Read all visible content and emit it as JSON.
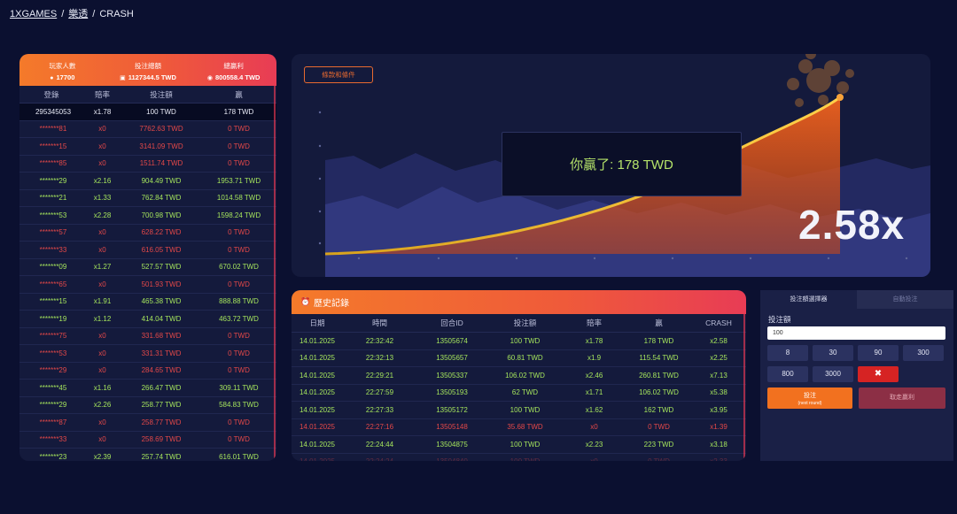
{
  "breadcrumb": {
    "home": "1XGAMES",
    "section": "樂透",
    "current": "CRASH",
    "separator": "/"
  },
  "stats": {
    "players_label": "玩家人數",
    "players_value": "17700",
    "total_bet_label": "投注總額",
    "total_bet_value": "1127344.5 TWD",
    "total_win_label": "總贏利",
    "total_win_value": "800558.4 TWD"
  },
  "bets_columns": [
    "登錄",
    "賠率",
    "投注額",
    "贏"
  ],
  "bets": [
    {
      "user": "295345053",
      "odds": "x1.78",
      "bet": "100 TWD",
      "win": "178 TWD",
      "state": "self"
    },
    {
      "user": "*******81",
      "odds": "x0",
      "bet": "7762.63 TWD",
      "win": "0 TWD",
      "state": "lose"
    },
    {
      "user": "*******15",
      "odds": "x0",
      "bet": "3141.09 TWD",
      "win": "0 TWD",
      "state": "lose"
    },
    {
      "user": "*******85",
      "odds": "x0",
      "bet": "1511.74 TWD",
      "win": "0 TWD",
      "state": "lose"
    },
    {
      "user": "*******29",
      "odds": "x2.16",
      "bet": "904.49 TWD",
      "win": "1953.71 TWD",
      "state": "win"
    },
    {
      "user": "*******21",
      "odds": "x1.33",
      "bet": "762.84 TWD",
      "win": "1014.58 TWD",
      "state": "win"
    },
    {
      "user": "*******53",
      "odds": "x2.28",
      "bet": "700.98 TWD",
      "win": "1598.24 TWD",
      "state": "win"
    },
    {
      "user": "*******57",
      "odds": "x0",
      "bet": "628.22 TWD",
      "win": "0 TWD",
      "state": "lose"
    },
    {
      "user": "*******33",
      "odds": "x0",
      "bet": "616.05 TWD",
      "win": "0 TWD",
      "state": "lose"
    },
    {
      "user": "*******09",
      "odds": "x1.27",
      "bet": "527.57 TWD",
      "win": "670.02 TWD",
      "state": "win"
    },
    {
      "user": "*******65",
      "odds": "x0",
      "bet": "501.93 TWD",
      "win": "0 TWD",
      "state": "lose"
    },
    {
      "user": "*******15",
      "odds": "x1.91",
      "bet": "465.38 TWD",
      "win": "888.88 TWD",
      "state": "win"
    },
    {
      "user": "*******19",
      "odds": "x1.12",
      "bet": "414.04 TWD",
      "win": "463.72 TWD",
      "state": "win"
    },
    {
      "user": "*******75",
      "odds": "x0",
      "bet": "331.68 TWD",
      "win": "0 TWD",
      "state": "lose"
    },
    {
      "user": "*******53",
      "odds": "x0",
      "bet": "331.31 TWD",
      "win": "0 TWD",
      "state": "lose"
    },
    {
      "user": "*******29",
      "odds": "x0",
      "bet": "284.65 TWD",
      "win": "0 TWD",
      "state": "lose"
    },
    {
      "user": "*******45",
      "odds": "x1.16",
      "bet": "266.47 TWD",
      "win": "309.11 TWD",
      "state": "win"
    },
    {
      "user": "*******29",
      "odds": "x2.26",
      "bet": "258.77 TWD",
      "win": "584.83 TWD",
      "state": "win"
    },
    {
      "user": "*******87",
      "odds": "x0",
      "bet": "258.77 TWD",
      "win": "0 TWD",
      "state": "lose"
    },
    {
      "user": "*******33",
      "odds": "x0",
      "bet": "258.69 TWD",
      "win": "0 TWD",
      "state": "lose"
    },
    {
      "user": "*******23",
      "odds": "x2.39",
      "bet": "257.74 TWD",
      "win": "616.01 TWD",
      "state": "win"
    }
  ],
  "game": {
    "terms_label": "條款和條件",
    "win_message": "你贏了: 178 TWD",
    "multiplier": "2.58x",
    "curve_color": "#f5c342",
    "fill_color": "#f0621e"
  },
  "history": {
    "title": "歷史記錄",
    "columns": [
      "日期",
      "時間",
      "回合ID",
      "投注額",
      "賠率",
      "贏",
      "CRASH"
    ],
    "rows": [
      {
        "date": "14.01.2025",
        "time": "22:32:42",
        "round": "13505674",
        "bet": "100 TWD",
        "odds": "x1.78",
        "win": "178 TWD",
        "crash": "x2.58",
        "state": "win"
      },
      {
        "date": "14.01.2025",
        "time": "22:32:13",
        "round": "13505657",
        "bet": "60.81 TWD",
        "odds": "x1.9",
        "win": "115.54 TWD",
        "crash": "x2.25",
        "state": "win"
      },
      {
        "date": "14.01.2025",
        "time": "22:29:21",
        "round": "13505337",
        "bet": "106.02 TWD",
        "odds": "x2.46",
        "win": "260.81 TWD",
        "crash": "x7.13",
        "state": "win"
      },
      {
        "date": "14.01.2025",
        "time": "22:27:59",
        "round": "13505193",
        "bet": "62 TWD",
        "odds": "x1.71",
        "win": "106.02 TWD",
        "crash": "x5.38",
        "state": "win"
      },
      {
        "date": "14.01.2025",
        "time": "22:27:33",
        "round": "13505172",
        "bet": "100 TWD",
        "odds": "x1.62",
        "win": "162 TWD",
        "crash": "x3.95",
        "state": "win"
      },
      {
        "date": "14.01.2025",
        "time": "22:27:16",
        "round": "13505148",
        "bet": "35.68 TWD",
        "odds": "x0",
        "win": "0 TWD",
        "crash": "x1.39",
        "state": "lose"
      },
      {
        "date": "14.01.2025",
        "time": "22:24:44",
        "round": "13504875",
        "bet": "100 TWD",
        "odds": "x2.23",
        "win": "223 TWD",
        "crash": "x3.18",
        "state": "win"
      },
      {
        "date": "14.01.2025",
        "time": "22:24:24",
        "round": "13504840",
        "bet": "100 TWD",
        "odds": "x0",
        "win": "0 TWD",
        "crash": "x2.33",
        "state": "lose faded"
      }
    ]
  },
  "controls": {
    "tab_amount": "投注額選擇器",
    "tab_auto": "自動投注",
    "amount_label": "投注額",
    "amount_value": "100",
    "chips": [
      "8",
      "30",
      "90",
      "300",
      "800",
      "3000"
    ],
    "clear_symbol": "✖",
    "bet_label": "投注",
    "bet_sublabel": "(next round)",
    "cashout_label": "取走贏利"
  }
}
